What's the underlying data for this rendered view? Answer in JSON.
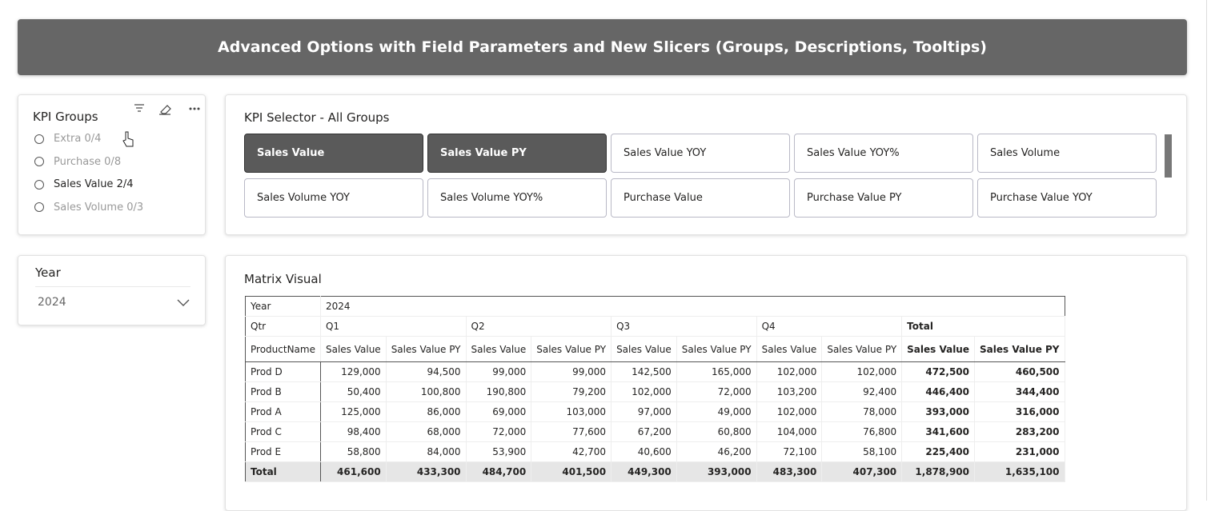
{
  "header": {
    "title": "Advanced Options with Field Parameters and New Slicers (Groups, Descriptions, Tooltips)"
  },
  "kpi_groups": {
    "title": "KPI Groups",
    "options": [
      "Extra 0/4",
      "Purchase 0/8",
      "Sales Value 2/4",
      "Sales Volume 0/3"
    ]
  },
  "kpi_selector": {
    "title": "KPI Selector - All Groups",
    "buttons": [
      "Sales Value",
      "Sales Value PY",
      "Sales Value YOY",
      "Sales Value YOY%",
      "Sales Volume",
      "Sales Volume YOY",
      "Sales Volume YOY%",
      "Purchase Value",
      "Purchase Value PY",
      "Purchase Value YOY"
    ]
  },
  "year_slicer": {
    "title": "Year",
    "value": "2024"
  },
  "matrix": {
    "title": "Matrix Visual",
    "year_label": "Year",
    "year": "2024",
    "qtr_label": "Qtr",
    "quarters": [
      "Q1",
      "Q2",
      "Q3",
      "Q4",
      "Total"
    ],
    "row_label": "ProductName",
    "columns": [
      "Sales Value",
      "Sales Value PY",
      "Sales Value",
      "Sales Value PY",
      "Sales Value",
      "Sales Value PY",
      "Sales Value",
      "Sales Value PY",
      "Sales Value",
      "Sales Value PY"
    ],
    "rows": [
      {
        "product": "Prod D",
        "values": [
          "129,000",
          "94,500",
          "99,000",
          "99,000",
          "142,500",
          "165,000",
          "102,000",
          "102,000",
          "472,500",
          "460,500"
        ]
      },
      {
        "product": "Prod B",
        "values": [
          "50,400",
          "100,800",
          "190,800",
          "79,200",
          "102,000",
          "72,000",
          "103,200",
          "92,400",
          "446,400",
          "344,400"
        ]
      },
      {
        "product": "Prod A",
        "values": [
          "125,000",
          "86,000",
          "69,000",
          "103,000",
          "97,000",
          "49,000",
          "102,000",
          "78,000",
          "393,000",
          "316,000"
        ]
      },
      {
        "product": "Prod C",
        "values": [
          "98,400",
          "68,000",
          "72,000",
          "77,600",
          "67,200",
          "60,800",
          "104,000",
          "76,800",
          "341,600",
          "283,200"
        ]
      },
      {
        "product": "Prod E",
        "values": [
          "58,800",
          "84,000",
          "53,900",
          "42,700",
          "40,600",
          "46,200",
          "72,100",
          "58,100",
          "225,400",
          "231,000"
        ]
      }
    ],
    "total": {
      "product": "Total",
      "values": [
        "461,600",
        "433,300",
        "484,700",
        "401,500",
        "449,300",
        "393,000",
        "483,300",
        "407,300",
        "1,878,900",
        "1,635,100"
      ]
    }
  }
}
